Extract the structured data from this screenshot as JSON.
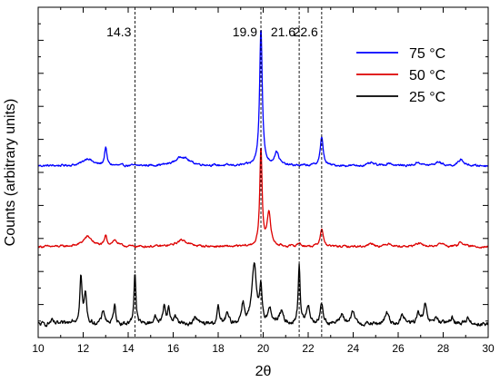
{
  "chart_data": {
    "type": "line",
    "xlabel": "2θ",
    "ylabel": "Counts (arbitrary units)",
    "xlim": [
      10,
      30
    ],
    "xticks": [
      "10",
      "12",
      "14",
      "16",
      "18",
      "20",
      "22",
      "24",
      "26",
      "28",
      "30"
    ],
    "ylim": [
      0,
      10
    ],
    "y_ticks_labeled": false,
    "grid": false,
    "legend_position": "top-right",
    "annotations": [
      {
        "text": "14.3",
        "x": 14.3
      },
      {
        "text": "19.9",
        "x": 19.9
      },
      {
        "text": "21.6",
        "x": 21.6
      },
      {
        "text": "22.6",
        "x": 22.6
      }
    ],
    "series": [
      {
        "name": "75 °C",
        "color": "#0000ff",
        "baseline": 5.2,
        "noise": 0.05,
        "peaks": [
          [
            12.2,
            0.22,
            0.25
          ],
          [
            13.0,
            0.55,
            0.06
          ],
          [
            16.4,
            0.28,
            0.35
          ],
          [
            19.9,
            4.2,
            0.07
          ],
          [
            20.6,
            0.4,
            0.12
          ],
          [
            22.6,
            0.85,
            0.08
          ],
          [
            24.8,
            0.08,
            0.15
          ],
          [
            25.6,
            0.08,
            0.15
          ],
          [
            26.9,
            0.1,
            0.15
          ],
          [
            27.8,
            0.12,
            0.15
          ],
          [
            28.8,
            0.2,
            0.12
          ]
        ]
      },
      {
        "name": "50 °C",
        "color": "#dd0000",
        "baseline": 2.75,
        "noise": 0.05,
        "peaks": [
          [
            12.2,
            0.3,
            0.25
          ],
          [
            13.0,
            0.3,
            0.06
          ],
          [
            13.4,
            0.18,
            0.15
          ],
          [
            16.4,
            0.2,
            0.3
          ],
          [
            19.9,
            3.0,
            0.06
          ],
          [
            20.25,
            1.0,
            0.1
          ],
          [
            21.6,
            0.1,
            0.1
          ],
          [
            22.6,
            0.55,
            0.08
          ],
          [
            24.8,
            0.1,
            0.15
          ],
          [
            25.6,
            0.1,
            0.15
          ],
          [
            26.9,
            0.1,
            0.15
          ],
          [
            27.9,
            0.1,
            0.15
          ],
          [
            28.8,
            0.15,
            0.12
          ]
        ]
      },
      {
        "name": "25 °C",
        "color": "#000000",
        "baseline": 0.4,
        "noise": 0.1,
        "peaks": [
          [
            10.6,
            0.1,
            0.08
          ],
          [
            11.5,
            0.12,
            0.1
          ],
          [
            11.9,
            1.45,
            0.06
          ],
          [
            12.1,
            0.9,
            0.06
          ],
          [
            12.9,
            0.4,
            0.08
          ],
          [
            13.4,
            0.55,
            0.06
          ],
          [
            14.3,
            1.6,
            0.05
          ],
          [
            15.2,
            0.2,
            0.1
          ],
          [
            15.6,
            0.6,
            0.06
          ],
          [
            15.8,
            0.45,
            0.06
          ],
          [
            16.1,
            0.25,
            0.08
          ],
          [
            17.0,
            0.2,
            0.1
          ],
          [
            18.0,
            0.5,
            0.06
          ],
          [
            18.4,
            0.3,
            0.08
          ],
          [
            19.1,
            0.6,
            0.08
          ],
          [
            19.6,
            1.75,
            0.12
          ],
          [
            19.9,
            1.0,
            0.06
          ],
          [
            20.3,
            0.4,
            0.1
          ],
          [
            20.8,
            0.35,
            0.1
          ],
          [
            21.6,
            1.8,
            0.05
          ],
          [
            22.0,
            0.5,
            0.1
          ],
          [
            22.6,
            0.6,
            0.08
          ],
          [
            23.5,
            0.3,
            0.1
          ],
          [
            24.0,
            0.35,
            0.1
          ],
          [
            25.5,
            0.35,
            0.1
          ],
          [
            26.2,
            0.25,
            0.1
          ],
          [
            26.9,
            0.3,
            0.1
          ],
          [
            27.2,
            0.55,
            0.08
          ],
          [
            27.7,
            0.2,
            0.1
          ],
          [
            28.4,
            0.2,
            0.1
          ],
          [
            29.1,
            0.2,
            0.1
          ]
        ]
      }
    ]
  }
}
